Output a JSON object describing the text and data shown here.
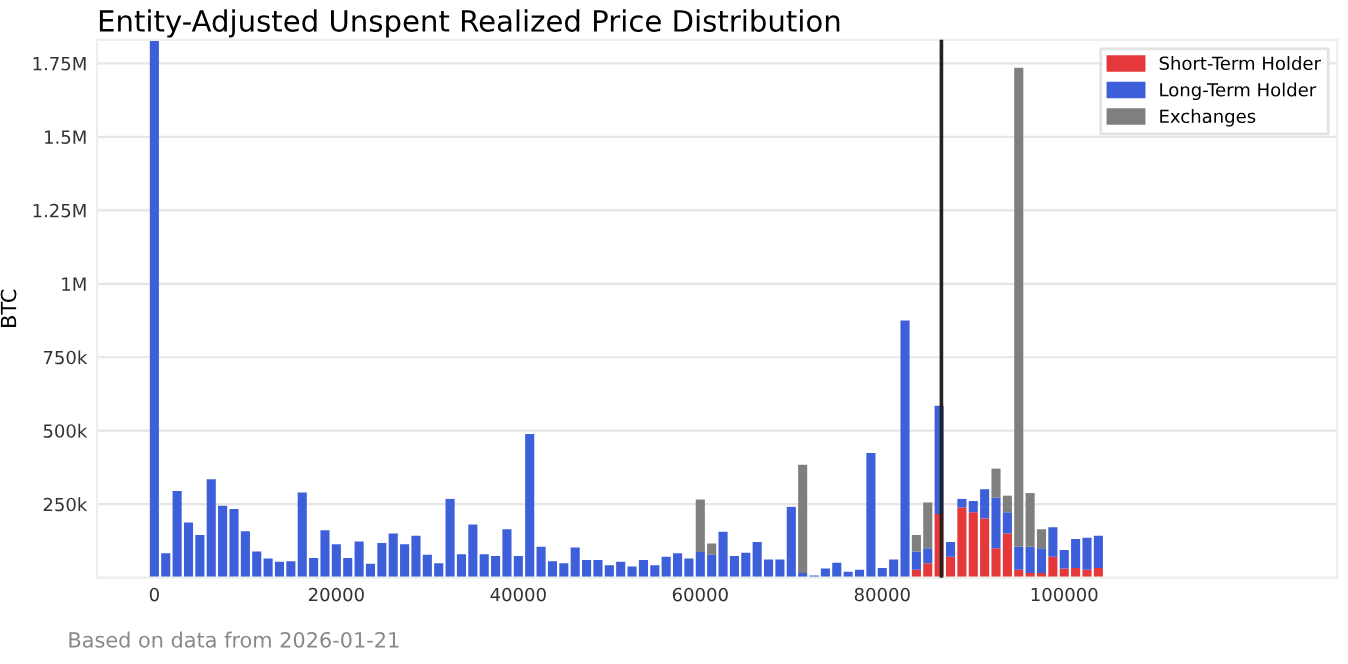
{
  "chart_data": {
    "type": "bar",
    "stacked": true,
    "title": "Entity-Adjusted Unspent Realized Price Distribution",
    "ylabel": "BTC",
    "x": [
      0,
      1250,
      2500,
      3750,
      5000,
      6250,
      7500,
      8750,
      10000,
      11250,
      12500,
      13750,
      15000,
      16250,
      17500,
      18750,
      20000,
      21250,
      22500,
      23750,
      25000,
      26250,
      27500,
      28750,
      30000,
      31250,
      32500,
      33750,
      35000,
      36250,
      37500,
      38750,
      40000,
      41250,
      42500,
      43750,
      45000,
      46250,
      47500,
      48750,
      50000,
      51250,
      52500,
      53750,
      55000,
      56250,
      57500,
      58750,
      60000,
      61250,
      62500,
      63750,
      65000,
      66250,
      67500,
      68750,
      70000,
      71250,
      72500,
      73750,
      75000,
      76250,
      77500,
      78750,
      80000,
      81250,
      82500,
      83750,
      85000,
      86250,
      87500,
      88750,
      90000,
      91250,
      92500,
      93750,
      95000,
      96250,
      97500,
      98750,
      100000,
      101250,
      102500,
      103750
    ],
    "series": [
      {
        "name": "Short-Term Holder",
        "color": "#e5383b",
        "values": [
          0,
          0,
          0,
          0,
          0,
          0,
          0,
          0,
          0,
          0,
          0,
          0,
          0,
          0,
          0,
          0,
          0,
          0,
          0,
          0,
          0,
          0,
          0,
          0,
          0,
          0,
          0,
          0,
          0,
          0,
          0,
          0,
          0,
          0,
          0,
          0,
          0,
          0,
          0,
          0,
          0,
          0,
          0,
          0,
          0,
          0,
          0,
          0,
          0,
          0,
          0,
          0,
          0,
          0,
          0,
          0,
          0,
          0,
          0,
          0,
          0,
          0,
          0,
          0,
          0,
          0,
          0,
          27000,
          49000,
          217000,
          71000,
          239000,
          223000,
          201000,
          100000,
          150000,
          27000,
          16000,
          16000,
          71000,
          31000,
          33000,
          27000,
          33000
        ]
      },
      {
        "name": "Long-Term Holder",
        "color": "#3d5fd9",
        "values": [
          1830000,
          83000,
          295000,
          188000,
          145000,
          335000,
          245000,
          234000,
          158000,
          89000,
          65000,
          54000,
          56000,
          290000,
          67000,
          161000,
          114000,
          67000,
          123000,
          47000,
          118000,
          150000,
          114000,
          143000,
          78000,
          49000,
          268000,
          80000,
          181000,
          80000,
          74000,
          165000,
          74000,
          489000,
          105000,
          56000,
          49000,
          103000,
          60000,
          60000,
          42000,
          54000,
          38000,
          60000,
          42000,
          71000,
          83000,
          65000,
          87000,
          78000,
          156000,
          74000,
          85000,
          121000,
          62000,
          62000,
          241000,
          16000,
          7000,
          31000,
          51000,
          20000,
          27000,
          424000,
          33000,
          62000,
          875000,
          62000,
          51000,
          368000,
          50000,
          29000,
          38000,
          100000,
          172000,
          73000,
          78000,
          89000,
          84000,
          101000,
          63000,
          99000,
          109000,
          110000
        ]
      },
      {
        "name": "Exchanges",
        "color": "#7f7f7f",
        "values": [
          0,
          0,
          0,
          0,
          0,
          0,
          0,
          0,
          0,
          0,
          0,
          0,
          0,
          0,
          0,
          0,
          0,
          0,
          0,
          0,
          0,
          0,
          0,
          0,
          0,
          0,
          0,
          0,
          0,
          0,
          0,
          0,
          0,
          0,
          0,
          0,
          0,
          0,
          0,
          0,
          0,
          0,
          0,
          0,
          0,
          0,
          0,
          0,
          179000,
          38000,
          0,
          0,
          0,
          0,
          0,
          0,
          0,
          368000,
          0,
          0,
          0,
          0,
          0,
          0,
          0,
          0,
          0,
          56000,
          156000,
          0,
          0,
          0,
          0,
          0,
          99000,
          56000,
          1630000,
          183000,
          65000,
          0,
          0,
          0,
          0,
          0
        ]
      }
    ],
    "xlim": [
      -6300,
      130000
    ],
    "xticks": [
      0,
      20000,
      40000,
      60000,
      80000,
      100000
    ],
    "ylim": [
      0,
      1830000
    ],
    "yticks": [
      {
        "value": 250000,
        "label": "250k"
      },
      {
        "value": 500000,
        "label": "500k"
      },
      {
        "value": 750000,
        "label": "750k"
      },
      {
        "value": 1000000,
        "label": "1M"
      },
      {
        "value": 1250000,
        "label": "1.25M"
      },
      {
        "value": 1500000,
        "label": "1.5M"
      },
      {
        "value": 1750000,
        "label": "1.75M"
      }
    ],
    "ref_lines": [
      {
        "axis": "x",
        "value": 86500,
        "color": "#222222"
      }
    ],
    "grid": "y",
    "legend": "top right",
    "annotations": [
      "Based on data from 2026-01-21"
    ]
  }
}
